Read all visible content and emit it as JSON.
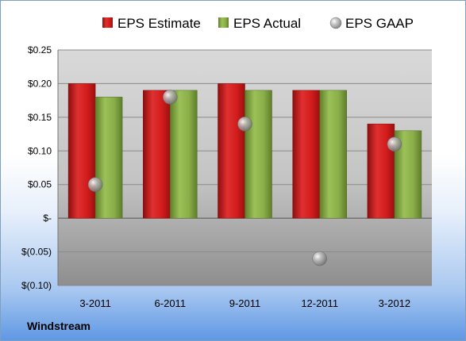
{
  "company": "Windstream",
  "chart_data": {
    "type": "bar",
    "categories": [
      "3-2011",
      "6-2011",
      "9-2011",
      "12-2011",
      "3-2012"
    ],
    "series": [
      {
        "name": "EPS Estimate",
        "kind": "bar",
        "color": "#d42020",
        "values": [
          0.2,
          0.19,
          0.2,
          0.19,
          0.14
        ]
      },
      {
        "name": "EPS Actual",
        "kind": "bar",
        "color": "#8db048",
        "values": [
          0.18,
          0.19,
          0.19,
          0.19,
          0.13
        ]
      },
      {
        "name": "EPS GAAP",
        "kind": "scatter",
        "color": "#a8a8a8",
        "values": [
          0.05,
          0.18,
          0.14,
          -0.06,
          0.11
        ]
      }
    ],
    "ylim": [
      -0.1,
      0.25
    ],
    "yticks": [
      {
        "value": 0.25,
        "label": "$0.25"
      },
      {
        "value": 0.2,
        "label": "$0.20"
      },
      {
        "value": 0.15,
        "label": "$0.15"
      },
      {
        "value": 0.1,
        "label": "$0.10"
      },
      {
        "value": 0.05,
        "label": "$0.05"
      },
      {
        "value": 0,
        "label": "$-"
      },
      {
        "value": -0.05,
        "label": "$(0.05)"
      },
      {
        "value": -0.1,
        "label": "$(0.10)"
      }
    ],
    "legend_position": "top",
    "grid": true
  }
}
